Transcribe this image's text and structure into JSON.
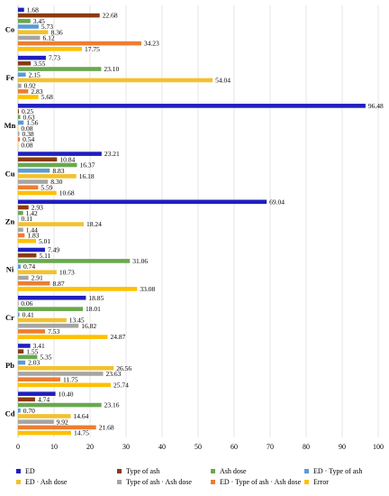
{
  "chart_data": {
    "type": "bar",
    "orientation": "horizontal",
    "categories": [
      "Co",
      "Fe",
      "Mn",
      "Cu",
      "Zn",
      "Ni",
      "Cr",
      "Pb",
      "Cd"
    ],
    "xlim": [
      0,
      100
    ],
    "xticks": [
      0,
      10,
      20,
      30,
      40,
      50,
      60,
      70,
      80,
      90,
      100
    ],
    "grid": true,
    "legend_position": "bottom",
    "series": [
      {
        "name": "ED",
        "color": "#1f1fbf",
        "values": [
          1.68,
          7.73,
          96.48,
          23.21,
          69.04,
          7.49,
          18.85,
          3.41,
          10.4
        ],
        "labels": [
          "1.68",
          "7.73",
          "96.48",
          "23.21",
          "69.04",
          "7.49",
          "18.85",
          "3.41",
          "10.40"
        ]
      },
      {
        "name": "Type of ash",
        "color": "#8b3a0e",
        "values": [
          22.68,
          3.55,
          0.25,
          10.84,
          2.93,
          5.11,
          0.06,
          1.55,
          4.74
        ],
        "labels": [
          "22.68",
          "3.55",
          "0.25",
          "10.84",
          "2.93",
          "5.11",
          "0.06",
          "1.55",
          "4.74"
        ]
      },
      {
        "name": "Ash dose",
        "color": "#6aa84f",
        "values": [
          3.45,
          23.1,
          0.63,
          16.37,
          1.42,
          31.06,
          18.01,
          5.35,
          23.16
        ],
        "labels": [
          "3.45",
          "23.10",
          "0.63",
          "16.37",
          "1.42",
          "31.06",
          "18.01",
          "5.35",
          "23.16"
        ]
      },
      {
        "name": "ED · Type of ash",
        "color": "#5b9bd5",
        "values": [
          5.73,
          2.15,
          1.56,
          8.83,
          0.11,
          0.74,
          0.41,
          2.03,
          0.7
        ],
        "labels": [
          "5.73",
          "2.15",
          "1.56",
          "8.83",
          "0.11",
          "0.74",
          "0.41",
          "2.03",
          "0.70"
        ]
      },
      {
        "name": "ED · Ash dose",
        "color": "#f2c12e",
        "values": [
          8.36,
          54.04,
          0.08,
          16.18,
          18.24,
          10.73,
          13.45,
          26.56,
          14.64
        ],
        "labels": [
          "8.36",
          "54.04",
          "0.08",
          "16.18",
          "18.24",
          "10.73",
          "13.45",
          "26.56",
          "14.64"
        ]
      },
      {
        "name": "Type of ash · Ash dose",
        "color": "#a5a5a5",
        "values": [
          6.12,
          0.92,
          0.38,
          8.3,
          1.44,
          2.91,
          16.82,
          23.63,
          9.92
        ],
        "labels": [
          "6.12",
          "0.92",
          "0.38",
          "8.30",
          "1.44",
          "2.91",
          "16.82",
          "23.63",
          "9.92"
        ]
      },
      {
        "name": "ED · Type of ash · Ash dose",
        "color": "#ed7d31",
        "values": [
          34.23,
          2.83,
          0.54,
          5.59,
          1.83,
          8.87,
          7.53,
          11.75,
          21.68
        ],
        "labels": [
          "34.23",
          "2.83",
          "0.54",
          "5.59",
          "1.83",
          "8.87",
          "7.53",
          "11.75",
          "21.68"
        ]
      },
      {
        "name": "Error",
        "color": "#ffc000",
        "values": [
          17.75,
          5.68,
          0.08,
          10.68,
          5.01,
          33.08,
          24.87,
          25.74,
          14.75
        ],
        "labels": [
          "17.75",
          "5.68",
          "0.08",
          "10.68",
          "5.01",
          "33.08",
          "24.87",
          "25.74",
          "14.75"
        ]
      }
    ]
  }
}
